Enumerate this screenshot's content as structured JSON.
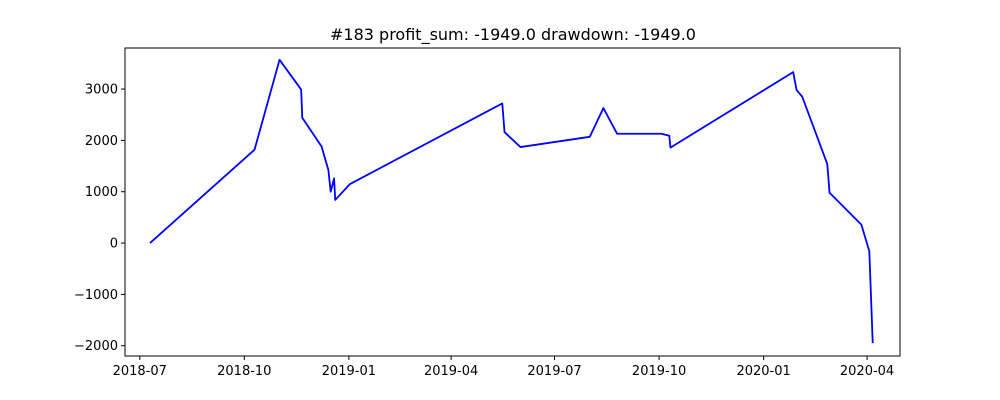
{
  "chart_data": {
    "type": "line",
    "title": "#183   profit_sum: -1949.0 drawdown: -1949.0",
    "xlabel": "",
    "ylabel": "",
    "x_axis": "date",
    "xlim": [
      "2018-06-18",
      "2020-04-30"
    ],
    "ylim": [
      -2200,
      3800
    ],
    "grid": false,
    "x_ticks": [
      {
        "date": "2018-07-01",
        "label": "2018-07"
      },
      {
        "date": "2018-10-01",
        "label": "2018-10"
      },
      {
        "date": "2019-01-01",
        "label": "2019-01"
      },
      {
        "date": "2019-04-01",
        "label": "2019-04"
      },
      {
        "date": "2019-07-01",
        "label": "2019-07"
      },
      {
        "date": "2019-10-01",
        "label": "2019-10"
      },
      {
        "date": "2020-01-01",
        "label": "2020-01"
      },
      {
        "date": "2020-04-01",
        "label": "2020-04"
      }
    ],
    "y_ticks": [
      -2000,
      -1000,
      0,
      1000,
      2000,
      3000
    ],
    "series": [
      {
        "color": "#0000ff",
        "points": [
          [
            "2018-07-10",
            0
          ],
          [
            "2018-10-10",
            1820
          ],
          [
            "2018-11-01",
            3570
          ],
          [
            "2018-11-20",
            2990
          ],
          [
            "2018-11-21",
            2440
          ],
          [
            "2018-12-08",
            1880
          ],
          [
            "2018-12-14",
            1420
          ],
          [
            "2018-12-16",
            1000
          ],
          [
            "2018-12-19",
            1260
          ],
          [
            "2018-12-20",
            840
          ],
          [
            "2019-01-02",
            1150
          ],
          [
            "2019-05-16",
            2720
          ],
          [
            "2019-05-18",
            2160
          ],
          [
            "2019-06-01",
            1870
          ],
          [
            "2019-08-01",
            2070
          ],
          [
            "2019-08-13",
            2630
          ],
          [
            "2019-08-25",
            2130
          ],
          [
            "2019-10-03",
            2130
          ],
          [
            "2019-10-10",
            2090
          ],
          [
            "2019-10-11",
            1860
          ],
          [
            "2020-01-27",
            3330
          ],
          [
            "2020-01-30",
            2980
          ],
          [
            "2020-02-04",
            2850
          ],
          [
            "2020-02-26",
            1540
          ],
          [
            "2020-02-28",
            980
          ],
          [
            "2020-03-27",
            360
          ],
          [
            "2020-04-03",
            -160
          ],
          [
            "2020-04-06",
            -1949
          ]
        ]
      }
    ]
  }
}
